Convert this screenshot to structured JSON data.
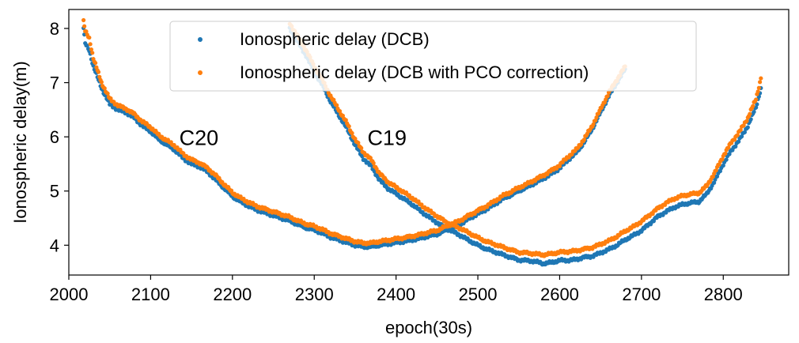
{
  "chart_data": {
    "type": "scatter",
    "xlabel": "epoch(30s)",
    "ylabel": "Ionospheric delay(m)",
    "xlim": [
      2000,
      2880
    ],
    "ylim": [
      3.45,
      8.35
    ],
    "xticks": [
      2000,
      2100,
      2200,
      2300,
      2400,
      2500,
      2600,
      2700,
      2800
    ],
    "yticks": [
      4,
      5,
      6,
      7,
      8
    ],
    "grid": false,
    "legend_position": "top-center",
    "series": [
      {
        "name": "Ionospheric delay (DCB)",
        "color": "#1f77b4",
        "curves": [
          {
            "x": [
              2018,
              2020,
              2025,
              2030,
              2040,
              2050,
              2060,
              2070,
              2080,
              2090,
              2100,
              2110,
              2120,
              2130,
              2140,
              2150,
              2160,
              2170,
              2180,
              2190,
              2200,
              2210,
              2220,
              2230,
              2240,
              2250,
              2260,
              2270,
              2280,
              2290,
              2300,
              2310,
              2320,
              2330,
              2340,
              2350,
              2360,
              2370,
              2380,
              2390,
              2400,
              2410,
              2420,
              2430,
              2440,
              2450,
              2460,
              2470,
              2480,
              2490,
              2500,
              2510,
              2520,
              2530,
              2540,
              2550,
              2560,
              2570,
              2580,
              2590,
              2600,
              2610,
              2620,
              2630,
              2640,
              2650,
              2660,
              2670,
              2680
            ],
            "y": [
              8.0,
              7.72,
              7.6,
              7.3,
              6.9,
              6.6,
              6.5,
              6.45,
              6.35,
              6.2,
              6.1,
              5.95,
              5.85,
              5.75,
              5.6,
              5.5,
              5.45,
              5.35,
              5.2,
              5.05,
              4.9,
              4.8,
              4.72,
              4.65,
              4.6,
              4.55,
              4.5,
              4.45,
              4.38,
              4.32,
              4.28,
              4.22,
              4.15,
              4.1,
              4.05,
              4.0,
              3.97,
              3.97,
              4.0,
              4.02,
              4.05,
              4.07,
              4.1,
              4.13,
              4.17,
              4.2,
              4.27,
              4.33,
              4.4,
              4.5,
              4.58,
              4.66,
              4.75,
              4.85,
              4.92,
              5.0,
              5.07,
              5.15,
              5.23,
              5.32,
              5.42,
              5.57,
              5.7,
              5.9,
              6.15,
              6.45,
              6.75,
              7.0,
              7.25
            ]
          },
          {
            "x": [
              2270,
              2280,
              2290,
              2300,
              2310,
              2320,
              2330,
              2340,
              2350,
              2360,
              2370,
              2380,
              2390,
              2400,
              2410,
              2420,
              2430,
              2440,
              2450,
              2460,
              2470,
              2480,
              2490,
              2500,
              2510,
              2520,
              2530,
              2540,
              2550,
              2560,
              2570,
              2580,
              2590,
              2600,
              2610,
              2620,
              2630,
              2640,
              2650,
              2660,
              2670,
              2680,
              2690,
              2700,
              2710,
              2720,
              2730,
              2740,
              2750,
              2760,
              2770,
              2780,
              2790,
              2800,
              2810,
              2820,
              2830,
              2840,
              2846
            ],
            "y": [
              8.0,
              7.75,
              7.5,
              7.2,
              6.95,
              6.65,
              6.4,
              6.15,
              5.85,
              5.6,
              5.45,
              5.2,
              5.05,
              4.95,
              4.85,
              4.75,
              4.63,
              4.52,
              4.42,
              4.32,
              4.25,
              4.17,
              4.08,
              4.0,
              3.93,
              3.88,
              3.83,
              3.78,
              3.73,
              3.72,
              3.7,
              3.66,
              3.68,
              3.72,
              3.72,
              3.74,
              3.78,
              3.8,
              3.86,
              3.92,
              4.0,
              4.1,
              4.18,
              4.27,
              4.4,
              4.53,
              4.62,
              4.7,
              4.75,
              4.78,
              4.8,
              4.95,
              5.2,
              5.5,
              5.75,
              5.95,
              6.2,
              6.55,
              6.9
            ]
          }
        ]
      },
      {
        "name": "Ionospheric delay (DCB with PCO correction)",
        "color": "#ff7f0e",
        "curves": [
          {
            "x": [
              2018,
              2020,
              2025,
              2030,
              2040,
              2050,
              2060,
              2070,
              2080,
              2090,
              2100,
              2110,
              2120,
              2130,
              2140,
              2150,
              2160,
              2170,
              2180,
              2190,
              2200,
              2210,
              2220,
              2230,
              2240,
              2250,
              2260,
              2270,
              2280,
              2290,
              2300,
              2310,
              2320,
              2330,
              2340,
              2350,
              2360,
              2370,
              2380,
              2390,
              2400,
              2410,
              2420,
              2430,
              2440,
              2450,
              2460,
              2470,
              2480,
              2490,
              2500,
              2510,
              2520,
              2530,
              2540,
              2550,
              2560,
              2570,
              2580,
              2590,
              2600,
              2610,
              2620,
              2630,
              2640,
              2650,
              2660,
              2670,
              2680
            ],
            "y": [
              8.13,
              7.95,
              7.82,
              7.45,
              7.0,
              6.7,
              6.58,
              6.52,
              6.42,
              6.28,
              6.18,
              6.03,
              5.93,
              5.83,
              5.68,
              5.58,
              5.52,
              5.42,
              5.28,
              5.12,
              4.97,
              4.87,
              4.79,
              4.72,
              4.67,
              4.62,
              4.57,
              4.52,
              4.45,
              4.39,
              4.35,
              4.29,
              4.22,
              4.17,
              4.12,
              4.07,
              4.04,
              4.04,
              4.07,
              4.09,
              4.12,
              4.14,
              4.17,
              4.2,
              4.24,
              4.27,
              4.34,
              4.4,
              4.47,
              4.56,
              4.64,
              4.72,
              4.81,
              4.91,
              4.98,
              5.06,
              5.13,
              5.21,
              5.29,
              5.38,
              5.48,
              5.63,
              5.76,
              5.96,
              6.21,
              6.51,
              6.81,
              7.06,
              7.3
            ]
          },
          {
            "x": [
              2270,
              2280,
              2290,
              2300,
              2310,
              2320,
              2330,
              2340,
              2350,
              2360,
              2370,
              2380,
              2390,
              2400,
              2410,
              2420,
              2430,
              2440,
              2450,
              2460,
              2470,
              2480,
              2490,
              2500,
              2510,
              2520,
              2530,
              2540,
              2550,
              2560,
              2570,
              2580,
              2590,
              2600,
              2610,
              2620,
              2630,
              2640,
              2650,
              2660,
              2670,
              2680,
              2690,
              2700,
              2710,
              2720,
              2730,
              2740,
              2750,
              2760,
              2770,
              2780,
              2790,
              2800,
              2810,
              2820,
              2830,
              2840,
              2846
            ],
            "y": [
              8.1,
              7.85,
              7.6,
              7.3,
              7.05,
              6.75,
              6.5,
              6.25,
              5.95,
              5.72,
              5.57,
              5.32,
              5.17,
              5.07,
              4.97,
              4.87,
              4.75,
              4.64,
              4.54,
              4.44,
              4.37,
              4.3,
              4.22,
              4.14,
              4.07,
              4.02,
              3.97,
              3.92,
              3.87,
              3.86,
              3.84,
              3.82,
              3.84,
              3.87,
              3.88,
              3.9,
              3.93,
              3.96,
              4.02,
              4.08,
              4.16,
              4.26,
              4.34,
              4.44,
              4.56,
              4.68,
              4.78,
              4.86,
              4.91,
              4.94,
              4.96,
              5.1,
              5.35,
              5.65,
              5.9,
              6.1,
              6.35,
              6.7,
              7.08
            ]
          }
        ]
      }
    ],
    "annotations": [
      {
        "text": "C20",
        "x": 2135,
        "y": 5.85
      },
      {
        "text": "C19",
        "x": 2365,
        "y": 5.85
      }
    ]
  }
}
